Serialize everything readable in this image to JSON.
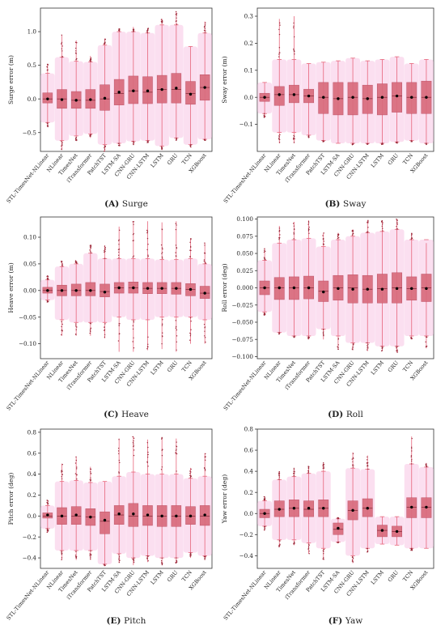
{
  "figure": {
    "categories": [
      "STL-TimesNet-NLinear",
      "NLinear",
      "TimesNet",
      "iTransformer",
      "PatchTST",
      "LSTM-SA",
      "CNN-GRU",
      "CNN-LSTM",
      "LSTM",
      "GRU",
      "TCN",
      "XGBoost"
    ],
    "colors": {
      "box_fill": "#d96b7d",
      "box_stroke": "#b8485c",
      "whisker": "#e7657b",
      "halo": "#f7c5e3",
      "flier": "#9b2a3a",
      "mean": "#000000",
      "frame": "#333333"
    }
  },
  "chart_data": [
    {
      "type": "box",
      "panel_label": "(A) Surge",
      "panel_bold": "A",
      "panel_name": "Surge",
      "ylabel": "Surge error (m)",
      "ylim": [
        -0.78,
        1.35
      ],
      "ticks": [
        {
          "v": -0.5,
          "label": "−0.5"
        },
        {
          "v": 0.0,
          "label": "0.0"
        },
        {
          "v": 0.5,
          "label": "0.5"
        },
        {
          "v": 1.0,
          "label": "1.0"
        }
      ],
      "boxes": [
        {
          "q1": -0.06,
          "median": 0.0,
          "q3": 0.09,
          "low": -0.35,
          "high": 0.38,
          "fmin": -0.42,
          "fmax": 0.52,
          "mean": 0.0
        },
        {
          "q1": -0.14,
          "median": 0.0,
          "q3": 0.14,
          "low": -0.62,
          "high": 0.62,
          "fmin": -0.76,
          "fmax": 0.95,
          "mean": -0.01
        },
        {
          "q1": -0.14,
          "median": -0.02,
          "q3": 0.11,
          "low": -0.55,
          "high": 0.56,
          "fmin": -0.62,
          "fmax": 0.87,
          "mean": -0.02
        },
        {
          "q1": -0.14,
          "median": -0.02,
          "q3": 0.14,
          "low": -0.52,
          "high": 0.55,
          "fmin": -0.58,
          "fmax": 0.64,
          "mean": -0.01
        },
        {
          "q1": -0.17,
          "median": 0.0,
          "q3": 0.21,
          "low": -0.68,
          "high": 0.8,
          "fmin": -0.78,
          "fmax": 0.9,
          "mean": 0.01
        },
        {
          "q1": -0.09,
          "median": 0.08,
          "q3": 0.29,
          "low": -0.66,
          "high": 1.0,
          "fmin": -0.7,
          "fmax": 1.05,
          "mean": 0.1
        },
        {
          "q1": -0.07,
          "median": 0.12,
          "q3": 0.34,
          "low": -0.63,
          "high": 1.0,
          "fmin": -0.68,
          "fmax": 1.07,
          "mean": 0.12
        },
        {
          "q1": -0.07,
          "median": 0.1,
          "q3": 0.33,
          "low": -0.62,
          "high": 0.98,
          "fmin": -0.65,
          "fmax": 1.05,
          "mean": 0.12
        },
        {
          "q1": -0.06,
          "median": 0.14,
          "q3": 0.35,
          "low": -0.7,
          "high": 1.1,
          "fmin": -0.76,
          "fmax": 1.19,
          "mean": 0.14
        },
        {
          "q1": -0.06,
          "median": 0.14,
          "q3": 0.38,
          "low": -0.58,
          "high": 1.1,
          "fmin": -0.62,
          "fmax": 1.3,
          "mean": 0.16
        },
        {
          "q1": -0.08,
          "median": 0.08,
          "q3": 0.26,
          "low": -0.68,
          "high": 0.78,
          "fmin": -0.72,
          "fmax": 0.78,
          "mean": 0.07
        },
        {
          "q1": -0.02,
          "median": 0.17,
          "q3": 0.36,
          "low": -0.6,
          "high": 0.98,
          "fmin": -0.62,
          "fmax": 1.15,
          "mean": 0.17
        }
      ]
    },
    {
      "type": "box",
      "panel_label": "(B) Sway",
      "panel_bold": "B",
      "panel_name": "Sway",
      "ylabel": "Sway error (m)",
      "ylim": [
        -0.2,
        0.33
      ],
      "ticks": [
        {
          "v": -0.1,
          "label": "−0.1"
        },
        {
          "v": 0.0,
          "label": "0.0"
        },
        {
          "v": 0.1,
          "label": "0.1"
        },
        {
          "v": 0.2,
          "label": "0.2"
        },
        {
          "v": 0.3,
          "label": "0.3"
        }
      ],
      "boxes": [
        {
          "q1": -0.015,
          "median": 0.0,
          "q3": 0.015,
          "low": -0.06,
          "high": 0.055,
          "fmin": -0.075,
          "fmax": 0.055,
          "mean": 0.0
        },
        {
          "q1": -0.03,
          "median": 0.01,
          "q3": 0.04,
          "low": -0.13,
          "high": 0.14,
          "fmin": -0.17,
          "fmax": 0.29,
          "mean": 0.01
        },
        {
          "q1": -0.02,
          "median": 0.01,
          "q3": 0.045,
          "low": -0.13,
          "high": 0.14,
          "fmin": -0.17,
          "fmax": 0.3,
          "mean": 0.01
        },
        {
          "q1": -0.02,
          "median": 0.005,
          "q3": 0.03,
          "low": -0.14,
          "high": 0.125,
          "fmin": -0.15,
          "fmax": 0.125,
          "mean": 0.005
        },
        {
          "q1": -0.06,
          "median": 0.0,
          "q3": 0.055,
          "low": -0.16,
          "high": 0.13,
          "fmin": -0.165,
          "fmax": 0.13,
          "mean": 0.0
        },
        {
          "q1": -0.065,
          "median": -0.005,
          "q3": 0.055,
          "low": -0.17,
          "high": 0.135,
          "fmin": -0.17,
          "fmax": 0.135,
          "mean": -0.005
        },
        {
          "q1": -0.065,
          "median": 0.0,
          "q3": 0.055,
          "low": -0.17,
          "high": 0.145,
          "fmin": -0.175,
          "fmax": 0.145,
          "mean": 0.0
        },
        {
          "q1": -0.06,
          "median": -0.005,
          "q3": 0.045,
          "low": -0.17,
          "high": 0.135,
          "fmin": -0.175,
          "fmax": 0.135,
          "mean": -0.005
        },
        {
          "q1": -0.065,
          "median": 0.0,
          "q3": 0.05,
          "low": -0.17,
          "high": 0.14,
          "fmin": -0.175,
          "fmax": 0.14,
          "mean": 0.0
        },
        {
          "q1": -0.055,
          "median": 0.005,
          "q3": 0.055,
          "low": -0.165,
          "high": 0.15,
          "fmin": -0.17,
          "fmax": 0.15,
          "mean": 0.005
        },
        {
          "q1": -0.06,
          "median": 0.0,
          "q3": 0.055,
          "low": -0.16,
          "high": 0.125,
          "fmin": -0.165,
          "fmax": 0.125,
          "mean": 0.0
        },
        {
          "q1": -0.06,
          "median": 0.0,
          "q3": 0.06,
          "low": -0.17,
          "high": 0.14,
          "fmin": -0.175,
          "fmax": 0.14,
          "mean": 0.0
        }
      ]
    },
    {
      "type": "box",
      "panel_label": "(C) Heave",
      "panel_bold": "C",
      "panel_name": "Heave",
      "ylabel": "Heave error (m)",
      "ylim": [
        -0.128,
        0.138
      ],
      "ticks": [
        {
          "v": -0.1,
          "label": "−0.10"
        },
        {
          "v": -0.05,
          "label": "−0.05"
        },
        {
          "v": 0.0,
          "label": "0.00"
        },
        {
          "v": 0.05,
          "label": "0.05"
        },
        {
          "v": 0.1,
          "label": "0.10"
        }
      ],
      "boxes": [
        {
          "q1": -0.005,
          "median": 0.0,
          "q3": 0.006,
          "low": -0.018,
          "high": 0.02,
          "fmin": -0.022,
          "fmax": 0.028,
          "mean": 0.0
        },
        {
          "q1": -0.01,
          "median": 0.0,
          "q3": 0.01,
          "low": -0.055,
          "high": 0.045,
          "fmin": -0.085,
          "fmax": 0.055,
          "mean": 0.0
        },
        {
          "q1": -0.01,
          "median": 0.0,
          "q3": 0.012,
          "low": -0.06,
          "high": 0.05,
          "fmin": -0.085,
          "fmax": 0.056,
          "mean": 0.0
        },
        {
          "q1": -0.01,
          "median": 0.0,
          "q3": 0.015,
          "low": -0.06,
          "high": 0.07,
          "fmin": -0.085,
          "fmax": 0.085,
          "mean": 0.0
        },
        {
          "q1": -0.012,
          "median": -0.002,
          "q3": 0.012,
          "low": -0.06,
          "high": 0.06,
          "fmin": -0.09,
          "fmax": 0.085,
          "mean": -0.003
        },
        {
          "q1": -0.005,
          "median": 0.005,
          "q3": 0.015,
          "low": -0.05,
          "high": 0.06,
          "fmin": -0.115,
          "fmax": 0.12,
          "mean": 0.005
        },
        {
          "q1": -0.005,
          "median": 0.005,
          "q3": 0.016,
          "low": -0.055,
          "high": 0.06,
          "fmin": -0.115,
          "fmax": 0.13,
          "mean": 0.005
        },
        {
          "q1": -0.006,
          "median": 0.004,
          "q3": 0.015,
          "low": -0.055,
          "high": 0.06,
          "fmin": -0.112,
          "fmax": 0.13,
          "mean": 0.004
        },
        {
          "q1": -0.006,
          "median": 0.004,
          "q3": 0.015,
          "low": -0.05,
          "high": 0.058,
          "fmin": -0.11,
          "fmax": 0.128,
          "mean": 0.004
        },
        {
          "q1": -0.007,
          "median": 0.004,
          "q3": 0.015,
          "low": -0.05,
          "high": 0.058,
          "fmin": -0.115,
          "fmax": 0.13,
          "mean": 0.004
        },
        {
          "q1": -0.01,
          "median": 0.002,
          "q3": 0.013,
          "low": -0.05,
          "high": 0.06,
          "fmin": -0.1,
          "fmax": 0.098,
          "mean": 0.002
        },
        {
          "q1": -0.015,
          "median": -0.005,
          "q3": 0.008,
          "low": -0.055,
          "high": 0.05,
          "fmin": -0.1,
          "fmax": 0.09,
          "mean": -0.005
        }
      ]
    },
    {
      "type": "box",
      "panel_label": "(D) Roll",
      "panel_bold": "D",
      "panel_name": "Roll",
      "ylabel": "Roll error (deg)",
      "ylim": [
        -0.103,
        0.103
      ],
      "ticks": [
        {
          "v": -0.1,
          "label": "−0.100"
        },
        {
          "v": -0.075,
          "label": "−0.075"
        },
        {
          "v": -0.05,
          "label": "−0.050"
        },
        {
          "v": -0.025,
          "label": "−0.025"
        },
        {
          "v": 0.0,
          "label": "0.000"
        },
        {
          "v": 0.025,
          "label": "0.025"
        },
        {
          "v": 0.05,
          "label": "0.050"
        },
        {
          "v": 0.075,
          "label": "0.075"
        },
        {
          "v": 0.1,
          "label": "0.100"
        }
      ],
      "boxes": [
        {
          "q1": -0.01,
          "median": 0.0,
          "q3": 0.01,
          "low": -0.035,
          "high": 0.04,
          "fmin": -0.04,
          "fmax": 0.058,
          "mean": 0.0
        },
        {
          "q1": -0.017,
          "median": 0.0,
          "q3": 0.015,
          "low": -0.065,
          "high": 0.065,
          "fmin": -0.068,
          "fmax": 0.09,
          "mean": 0.0
        },
        {
          "q1": -0.017,
          "median": 0.0,
          "q3": 0.016,
          "low": -0.07,
          "high": 0.07,
          "fmin": -0.072,
          "fmax": 0.096,
          "mean": 0.0
        },
        {
          "q1": -0.016,
          "median": 0.0,
          "q3": 0.017,
          "low": -0.07,
          "high": 0.072,
          "fmin": -0.075,
          "fmax": 0.098,
          "mean": 0.0
        },
        {
          "q1": -0.02,
          "median": -0.005,
          "q3": 0.01,
          "low": -0.06,
          "high": 0.06,
          "fmin": -0.075,
          "fmax": 0.08,
          "mean": -0.006
        },
        {
          "q1": -0.018,
          "median": 0.0,
          "q3": 0.018,
          "low": -0.07,
          "high": 0.07,
          "fmin": -0.09,
          "fmax": 0.08,
          "mean": -0.001
        },
        {
          "q1": -0.022,
          "median": 0.0,
          "q3": 0.019,
          "low": -0.08,
          "high": 0.075,
          "fmin": -0.09,
          "fmax": 0.085,
          "mean": -0.002
        },
        {
          "q1": -0.022,
          "median": -0.002,
          "q3": 0.018,
          "low": -0.08,
          "high": 0.08,
          "fmin": -0.092,
          "fmax": 0.098,
          "mean": -0.002
        },
        {
          "q1": -0.022,
          "median": -0.001,
          "q3": 0.02,
          "low": -0.085,
          "high": 0.082,
          "fmin": -0.092,
          "fmax": 0.098,
          "mean": -0.002
        },
        {
          "q1": -0.022,
          "median": 0.0,
          "q3": 0.022,
          "low": -0.085,
          "high": 0.085,
          "fmin": -0.094,
          "fmax": 0.1,
          "mean": -0.001
        },
        {
          "q1": -0.018,
          "median": -0.001,
          "q3": 0.016,
          "low": -0.07,
          "high": 0.07,
          "fmin": -0.075,
          "fmax": 0.08,
          "mean": -0.001
        },
        {
          "q1": -0.02,
          "median": 0.0,
          "q3": 0.02,
          "low": -0.07,
          "high": 0.07,
          "fmin": -0.088,
          "fmax": 0.065,
          "mean": -0.001
        }
      ]
    },
    {
      "type": "box",
      "panel_label": "(E) Pitch",
      "panel_bold": "E",
      "panel_name": "Pitch",
      "ylabel": "Pitch error (deg)",
      "ylim": [
        -0.5,
        0.83
      ],
      "ticks": [
        {
          "v": -0.4,
          "label": "−0.4"
        },
        {
          "v": -0.2,
          "label": "−0.2"
        },
        {
          "v": 0.0,
          "label": "0.0"
        },
        {
          "v": 0.2,
          "label": "0.2"
        },
        {
          "v": 0.4,
          "label": "0.4"
        },
        {
          "v": 0.6,
          "label": "0.6"
        },
        {
          "v": 0.8,
          "label": "0.8"
        }
      ],
      "boxes": [
        {
          "q1": -0.02,
          "median": 0.0,
          "q3": 0.03,
          "low": -0.12,
          "high": 0.1,
          "fmin": -0.16,
          "fmax": 0.15,
          "mean": 0.01
        },
        {
          "q1": -0.08,
          "median": 0.0,
          "q3": 0.08,
          "low": -0.33,
          "high": 0.33,
          "fmin": -0.42,
          "fmax": 0.5,
          "mean": 0.0
        },
        {
          "q1": -0.08,
          "median": 0.0,
          "q3": 0.09,
          "low": -0.33,
          "high": 0.34,
          "fmin": -0.42,
          "fmax": 0.57,
          "mean": 0.01
        },
        {
          "q1": -0.09,
          "median": -0.01,
          "q3": 0.07,
          "low": -0.33,
          "high": 0.32,
          "fmin": -0.42,
          "fmax": 0.47,
          "mean": -0.01
        },
        {
          "q1": -0.17,
          "median": -0.05,
          "q3": 0.04,
          "low": -0.46,
          "high": 0.33,
          "fmin": -0.48,
          "fmax": 0.33,
          "mean": -0.04
        },
        {
          "q1": -0.08,
          "median": 0.01,
          "q3": 0.1,
          "low": -0.36,
          "high": 0.38,
          "fmin": -0.45,
          "fmax": 0.74,
          "mean": 0.02
        },
        {
          "q1": -0.1,
          "median": 0.0,
          "q3": 0.12,
          "low": -0.4,
          "high": 0.42,
          "fmin": -0.47,
          "fmax": 0.76,
          "mean": 0.02
        },
        {
          "q1": -0.09,
          "median": 0.0,
          "q3": 0.1,
          "low": -0.38,
          "high": 0.4,
          "fmin": -0.44,
          "fmax": 0.73,
          "mean": 0.01
        },
        {
          "q1": -0.1,
          "median": 0.0,
          "q3": 0.1,
          "low": -0.4,
          "high": 0.4,
          "fmin": -0.47,
          "fmax": 0.75,
          "mean": 0.0
        },
        {
          "q1": -0.1,
          "median": 0.0,
          "q3": 0.1,
          "low": -0.4,
          "high": 0.4,
          "fmin": -0.45,
          "fmax": 0.74,
          "mean": 0.0
        },
        {
          "q1": -0.08,
          "median": 0.0,
          "q3": 0.09,
          "low": -0.35,
          "high": 0.36,
          "fmin": -0.4,
          "fmax": 0.46,
          "mean": 0.0
        },
        {
          "q1": -0.09,
          "median": 0.0,
          "q3": 0.1,
          "low": -0.38,
          "high": 0.38,
          "fmin": -0.42,
          "fmax": 0.6,
          "mean": 0.01
        }
      ]
    },
    {
      "type": "box",
      "panel_label": "(F) Yaw",
      "panel_bold": "F",
      "panel_name": "Yaw",
      "ylabel": "Yaw error (deg)",
      "ylim": [
        -0.52,
        0.8
      ],
      "ticks": [
        {
          "v": -0.4,
          "label": "−0.4"
        },
        {
          "v": -0.2,
          "label": "−0.2"
        },
        {
          "v": 0.0,
          "label": "0.0"
        },
        {
          "v": 0.2,
          "label": "0.2"
        },
        {
          "v": 0.4,
          "label": "0.4"
        },
        {
          "v": 0.6,
          "label": "0.6"
        },
        {
          "v": 0.8,
          "label": "0.8"
        }
      ],
      "boxes": [
        {
          "q1": -0.04,
          "median": 0.0,
          "q3": 0.04,
          "low": -0.12,
          "high": 0.12,
          "fmin": -0.16,
          "fmax": 0.16,
          "mean": 0.0
        },
        {
          "q1": -0.03,
          "median": 0.04,
          "q3": 0.12,
          "low": -0.25,
          "high": 0.32,
          "fmin": -0.32,
          "fmax": 0.4,
          "mean": 0.04
        },
        {
          "q1": -0.03,
          "median": 0.05,
          "q3": 0.13,
          "low": -0.25,
          "high": 0.35,
          "fmin": -0.3,
          "fmax": 0.43,
          "mean": 0.05
        },
        {
          "q1": -0.03,
          "median": 0.04,
          "q3": 0.12,
          "low": -0.28,
          "high": 0.38,
          "fmin": -0.38,
          "fmax": 0.45,
          "mean": 0.05
        },
        {
          "q1": -0.03,
          "median": 0.05,
          "q3": 0.13,
          "low": -0.33,
          "high": 0.4,
          "fmin": -0.44,
          "fmax": 0.48,
          "mean": 0.05
        },
        {
          "q1": -0.2,
          "median": -0.15,
          "q3": -0.09,
          "low": -0.27,
          "high": -0.05,
          "fmin": -0.28,
          "fmax": -0.04,
          "mean": -0.14
        },
        {
          "q1": -0.06,
          "median": 0.03,
          "q3": 0.12,
          "low": -0.4,
          "high": 0.43,
          "fmin": -0.47,
          "fmax": 0.58,
          "mean": 0.03
        },
        {
          "q1": -0.03,
          "median": 0.05,
          "q3": 0.14,
          "low": -0.33,
          "high": 0.42,
          "fmin": -0.37,
          "fmax": 0.55,
          "mean": 0.05
        },
        {
          "q1": -0.22,
          "median": -0.16,
          "q3": -0.11,
          "low": -0.29,
          "high": -0.03,
          "fmin": -0.29,
          "fmax": -0.03,
          "mean": -0.16
        },
        {
          "q1": -0.22,
          "median": -0.17,
          "q3": -0.12,
          "low": -0.3,
          "high": -0.03,
          "fmin": -0.3,
          "fmax": -0.03,
          "mean": -0.17
        },
        {
          "q1": -0.04,
          "median": 0.06,
          "q3": 0.15,
          "low": -0.33,
          "high": 0.47,
          "fmin": -0.35,
          "fmax": 0.73,
          "mean": 0.06
        },
        {
          "q1": -0.04,
          "median": 0.06,
          "q3": 0.15,
          "low": -0.33,
          "high": 0.44,
          "fmin": -0.33,
          "fmax": 0.48,
          "mean": 0.06
        }
      ]
    }
  ]
}
